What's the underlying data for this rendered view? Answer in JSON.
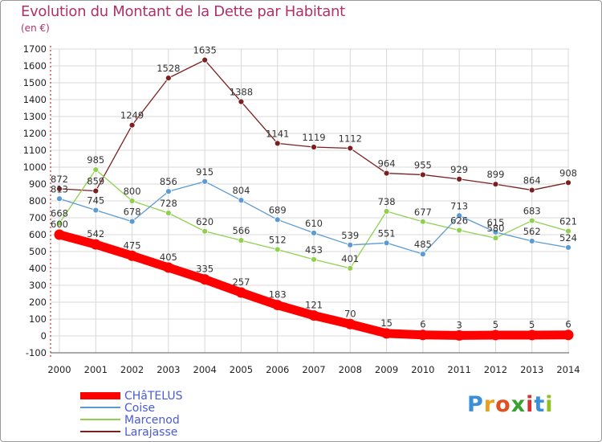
{
  "title": "Evolution du Montant de la Dette par Habitant",
  "unit": "(en €)",
  "logo": "Proxiti",
  "colors": {
    "title": "#b0306a",
    "legend_text": "#4a5bd6",
    "grid": "#d8d8d8",
    "background": "#ffffff"
  },
  "chart_data": {
    "type": "line",
    "x": [
      "2000",
      "2001",
      "2002",
      "2003",
      "2004",
      "2005",
      "2006",
      "2007",
      "2008",
      "2009",
      "2010",
      "2011",
      "2012",
      "2013",
      "2014"
    ],
    "ylim": [
      -100,
      1700
    ],
    "yticks": [
      -100,
      0,
      100,
      200,
      300,
      400,
      500,
      600,
      700,
      800,
      900,
      1000,
      1100,
      1200,
      1300,
      1400,
      1500,
      1600,
      1700
    ],
    "grid": true,
    "legend_position": "bottom-left",
    "series": [
      {
        "name": "CHâTELUS",
        "color": "#ff0000",
        "values": [
          600,
          542,
          475,
          405,
          335,
          257,
          183,
          121,
          70,
          15,
          6,
          3,
          5,
          5,
          6
        ]
      },
      {
        "name": "Coise",
        "color": "#5b9bd5",
        "values": [
          813,
          745,
          678,
          856,
          915,
          804,
          689,
          610,
          539,
          551,
          485,
          713,
          615,
          562,
          524
        ]
      },
      {
        "name": "Marcenod",
        "color": "#8fd14f",
        "values": [
          668,
          985,
          800,
          728,
          620,
          566,
          512,
          453,
          401,
          738,
          677,
          626,
          580,
          683,
          621
        ]
      },
      {
        "name": "Larajasse",
        "color": "#7b2020",
        "values": [
          872,
          859,
          1249,
          1528,
          1635,
          1388,
          1141,
          1119,
          1112,
          964,
          955,
          929,
          899,
          864,
          908
        ]
      }
    ]
  }
}
